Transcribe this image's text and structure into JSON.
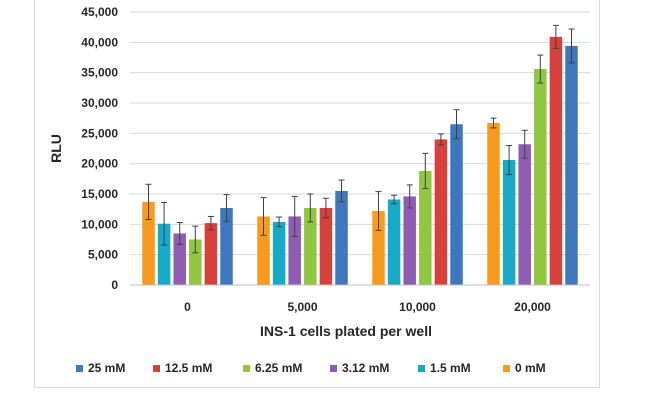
{
  "chart_data": {
    "type": "bar",
    "title": "",
    "xlabel": "INS-1 cells plated per well",
    "ylabel": "RLU",
    "categories": [
      "0",
      "5,000",
      "10,000",
      "20,000"
    ],
    "ylim": [
      0,
      45000
    ],
    "yticks": [
      0,
      5000,
      10000,
      15000,
      20000,
      25000,
      30000,
      35000,
      40000,
      45000
    ],
    "ytick_labels": [
      "0",
      "5,000",
      "10,000",
      "15,000",
      "20,000",
      "25,000",
      "30,000",
      "35,000",
      "40,000",
      "45,000"
    ],
    "grid": true,
    "legend_position": "bottom",
    "series": [
      {
        "name": "0 mM",
        "color": "#f79a1e",
        "values": [
          13700,
          11300,
          12200,
          26700
        ],
        "errors": [
          2900,
          3100,
          3200,
          800
        ]
      },
      {
        "name": "1.5 mM",
        "color": "#17a9c8",
        "values": [
          10100,
          10400,
          14100,
          20600
        ],
        "errors": [
          3500,
          800,
          700,
          2400
        ]
      },
      {
        "name": "3.12 mM",
        "color": "#8e5cb3",
        "values": [
          8500,
          11300,
          14600,
          23200
        ],
        "errors": [
          1800,
          3300,
          1900,
          2300
        ]
      },
      {
        "name": "6.25 mM",
        "color": "#8fc740",
        "values": [
          7500,
          12700,
          18800,
          35600
        ],
        "errors": [
          2200,
          2300,
          2900,
          2300
        ]
      },
      {
        "name": "12.5 mM",
        "color": "#d8403c",
        "values": [
          10200,
          12700,
          24000,
          40900
        ],
        "errors": [
          1100,
          1600,
          900,
          1900
        ]
      },
      {
        "name": "25 mM",
        "color": "#3f77bf",
        "values": [
          12700,
          15500,
          26500,
          39400
        ],
        "errors": [
          2200,
          1800,
          2400,
          2800
        ]
      }
    ],
    "legend_order": [
      "25 mM",
      "12.5 mM",
      "6.25 mM",
      "3.12 mM",
      "1.5 mM",
      "0 mM"
    ]
  }
}
